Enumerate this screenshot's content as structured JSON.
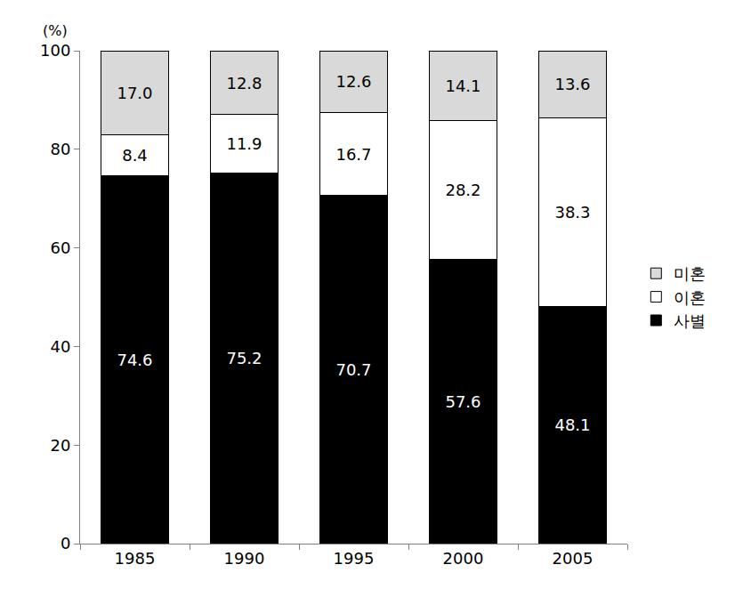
{
  "chart_data": {
    "type": "bar",
    "stacked": true,
    "data_labels": true,
    "grid": false,
    "legend": "right",
    "y_label": "(%)",
    "categories": [
      "1985",
      "1990",
      "1995",
      "2000",
      "2005"
    ],
    "series": [
      {
        "name": "사별",
        "color": "#000000",
        "values": [
          74.6,
          75.2,
          70.7,
          57.6,
          48.1
        ],
        "value_labels": [
          "74.6",
          "75.2",
          "70.7",
          "57.6",
          "48.1"
        ]
      },
      {
        "name": "이혼",
        "color": "#ffffff",
        "values": [
          8.4,
          11.9,
          16.7,
          28.2,
          38.3
        ],
        "value_labels": [
          "8.4",
          "11.9",
          "16.7",
          "28.2",
          "38.3"
        ]
      },
      {
        "name": "미혼",
        "color": "#d9d9d9",
        "values": [
          17.0,
          12.8,
          12.6,
          14.1,
          13.6
        ],
        "value_labels": [
          "17.0",
          "12.8",
          "12.6",
          "14.1",
          "13.6"
        ]
      }
    ],
    "ylim": [
      0,
      100
    ],
    "yticks": [
      0,
      20,
      40,
      60,
      80,
      100
    ]
  }
}
